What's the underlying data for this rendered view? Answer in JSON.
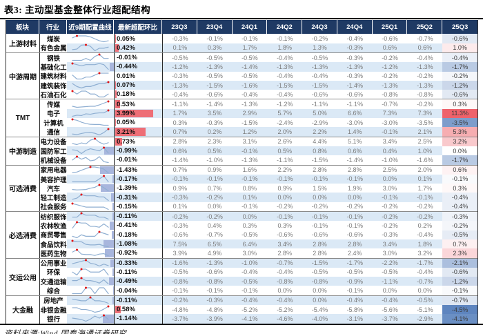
{
  "title": "表3:  主动型基金整体行业超配结构",
  "source": "资料来源:Wind,国泰海通证券研究",
  "colors": {
    "header_bg": "#1f3a64",
    "stripe": "#dbe9f6",
    "bar_positive": "#ee6e76",
    "bar_negative": "#a8b6dd",
    "heat_positive": "#ee626b",
    "heat_negative": "#5b83be",
    "spark_line": "#8fafd2",
    "spark_dot": "#e31212"
  },
  "chart_data": {
    "type": "table",
    "title": "表3:  主动型基金整体行业超配结构",
    "columns": {
      "sector": "板块",
      "industry": "行业",
      "sparkline": "近9期配置曲线",
      "latest": "最新超配环比",
      "quarters": [
        "23Q3",
        "23Q4",
        "24Q1",
        "24Q2",
        "24Q3",
        "24Q4",
        "25Q1",
        "25Q2",
        "25Q3"
      ]
    },
    "value_unit": "%",
    "sections": [
      {
        "name": "上游材料",
        "rows": [
          {
            "industry": "煤炭",
            "latest": 0.05,
            "shade": false,
            "values": [
              -0.3,
              -0.1,
              -0.1,
              -0.1,
              -0.2,
              -0.4,
              -0.6,
              -0.7,
              -0.6
            ]
          },
          {
            "industry": "有色金属",
            "latest": 0.42,
            "shade": true,
            "values": [
              0.1,
              0.3,
              1.7,
              1.8,
              1.3,
              -0.3,
              0.6,
              0.6,
              1.0
            ]
          }
        ]
      },
      {
        "name": "中游周期",
        "rows": [
          {
            "industry": "钢铁",
            "latest": -0.01,
            "shade": false,
            "values": [
              -0.5,
              -0.5,
              -0.5,
              -0.4,
              -0.5,
              -0.3,
              -0.2,
              -0.4,
              -0.4
            ]
          },
          {
            "industry": "基础化工",
            "latest": -0.44,
            "shade": true,
            "values": [
              -1.2,
              -1.3,
              -1.4,
              -1.3,
              -1.3,
              -1.3,
              -1.2,
              -1.3,
              -1.7
            ]
          },
          {
            "industry": "建筑材料",
            "latest": 0.01,
            "shade": false,
            "values": [
              -0.3,
              -0.5,
              -0.5,
              -0.4,
              -0.4,
              -0.3,
              -0.2,
              -0.2,
              -0.2
            ]
          },
          {
            "industry": "建筑装饰",
            "latest": 0.07,
            "shade": true,
            "values": [
              -1.3,
              -1.5,
              -1.6,
              -1.5,
              -1.5,
              -1.4,
              -1.3,
              -1.3,
              -1.2
            ]
          },
          {
            "industry": "石油石化",
            "latest": 0.18,
            "shade": false,
            "values": [
              -0.4,
              -0.6,
              -0.4,
              -0.4,
              -0.6,
              -0.6,
              -0.8,
              -0.8,
              -0.6
            ]
          }
        ]
      },
      {
        "name": "TMT",
        "rows": [
          {
            "industry": "传媒",
            "latest": 0.53,
            "shade": false,
            "values": [
              -1.1,
              -1.4,
              -1.3,
              -1.2,
              -1.1,
              -1.1,
              -0.7,
              -0.2,
              0.3
            ]
          },
          {
            "industry": "电子",
            "latest": 3.99,
            "shade": true,
            "values": [
              1.7,
              3.5,
              2.9,
              5.7,
              5.0,
              6.6,
              7.3,
              7.3,
              11.3
            ]
          },
          {
            "industry": "计算机",
            "latest": 0.05,
            "shade": false,
            "values": [
              0.3,
              -0.3,
              -1.5,
              -2.4,
              -2.9,
              -3.0,
              -3.0,
              -3.5,
              -3.5
            ]
          },
          {
            "industry": "通信",
            "latest": 3.21,
            "shade": true,
            "values": [
              0.7,
              0.2,
              1.2,
              2.0,
              2.2,
              1.4,
              -0.1,
              2.1,
              5.3
            ]
          }
        ]
      },
      {
        "name": "中游制造",
        "rows": [
          {
            "industry": "电力设备",
            "latest": 0.73,
            "shade": false,
            "values": [
              2.8,
              2.3,
              3.1,
              2.6,
              4.4,
              5.1,
              3.4,
              2.5,
              3.2
            ]
          },
          {
            "industry": "国防军工",
            "latest": -0.99,
            "shade": true,
            "values": [
              0.6,
              0.5,
              -0.1,
              0.5,
              0.8,
              0.6,
              0.4,
              1.0,
              0.0
            ]
          },
          {
            "industry": "机械设备",
            "latest": -0.01,
            "shade": false,
            "values": [
              -1.4,
              -1.0,
              -1.3,
              -1.1,
              -1.5,
              -1.4,
              -1.0,
              -1.6,
              -1.7
            ]
          }
        ]
      },
      {
        "name": "可选消费",
        "rows": [
          {
            "industry": "家用电器",
            "latest": -1.43,
            "shade": false,
            "values": [
              0.7,
              0.9,
              1.6,
              2.2,
              2.8,
              2.8,
              2.5,
              2.0,
              0.6
            ]
          },
          {
            "industry": "美容护理",
            "latest": -0.17,
            "shade": true,
            "values": [
              -0.1,
              -0.1,
              -0.1,
              -0.1,
              -0.1,
              -0.1,
              0.0,
              0.1,
              -0.1
            ]
          },
          {
            "industry": "汽车",
            "latest": -1.39,
            "shade": false,
            "values": [
              0.9,
              0.7,
              0.8,
              0.9,
              1.5,
              1.9,
              3.0,
              1.7,
              0.3
            ]
          },
          {
            "industry": "轻工制造",
            "latest": -0.31,
            "shade": true,
            "values": [
              -0.3,
              -0.2,
              0.1,
              0.0,
              0.0,
              0.0,
              -0.1,
              -0.1,
              -0.4
            ]
          },
          {
            "industry": "社会服务",
            "latest": -0.15,
            "shade": false,
            "values": [
              0.1,
              0.0,
              -0.1,
              -0.2,
              -0.2,
              -0.2,
              -0.2,
              -0.2,
              -0.4
            ]
          }
        ]
      },
      {
        "name": "必选消费",
        "rows": [
          {
            "industry": "纺织服饰",
            "latest": -0.11,
            "shade": true,
            "values": [
              -0.2,
              -0.2,
              0.0,
              -0.1,
              -0.1,
              -0.1,
              -0.2,
              -0.2,
              -0.3
            ]
          },
          {
            "industry": "农林牧渔",
            "latest": -0.41,
            "shade": false,
            "values": [
              -0.3,
              0.4,
              0.3,
              0.3,
              -0.1,
              -0.1,
              -0.2,
              0.2,
              -0.2
            ]
          },
          {
            "industry": "商贸零售",
            "latest": -0.18,
            "shade": false,
            "values": [
              -0.6,
              -0.7,
              -0.5,
              -0.6,
              -0.6,
              -0.6,
              -0.3,
              -0.4,
              -0.5
            ]
          },
          {
            "industry": "食品饮料",
            "latest": -1.08,
            "shade": true,
            "values": [
              7.5,
              6.5,
              6.4,
              3.4,
              2.8,
              2.8,
              3.4,
              1.8,
              0.7
            ]
          },
          {
            "industry": "医药生物",
            "latest": -0.92,
            "shade": false,
            "values": [
              3.9,
              4.9,
              3.0,
              2.8,
              2.8,
              2.4,
              3.0,
              3.2,
              2.3
            ]
          }
        ]
      },
      {
        "name": "交运公用",
        "rows": [
          {
            "industry": "公用事业",
            "latest": -0.33,
            "shade": true,
            "values": [
              -1.6,
              -1.3,
              -1.0,
              -0.7,
              -1.5,
              -1.7,
              -2.2,
              -1.7,
              -2.1
            ]
          },
          {
            "industry": "环保",
            "latest": -0.11,
            "shade": false,
            "values": [
              -0.5,
              -0.6,
              -0.4,
              -0.4,
              -0.5,
              -0.5,
              -0.5,
              -0.4,
              -0.6
            ]
          },
          {
            "industry": "交通运输",
            "latest": -0.49,
            "shade": true,
            "values": [
              -0.8,
              -0.8,
              -0.5,
              -0.8,
              -0.8,
              -0.9,
              -1.1,
              -0.7,
              -1.2
            ]
          },
          {
            "industry": "综合",
            "latest": -0.04,
            "shade": false,
            "values": [
              -0.1,
              -0.1,
              -0.1,
              0.0,
              0.0,
              -0.1,
              0.0,
              0.0,
              -0.1
            ]
          }
        ]
      },
      {
        "name": "大金融",
        "rows": [
          {
            "industry": "房地产",
            "latest": -0.11,
            "shade": true,
            "values": [
              -0.2,
              -0.3,
              -0.4,
              -0.4,
              0.0,
              -0.4,
              -0.4,
              -0.5,
              -0.7
            ]
          },
          {
            "industry": "非银金融",
            "latest": 0.58,
            "shade": false,
            "values": [
              -4.8,
              -4.8,
              -5.2,
              -5.2,
              -5.4,
              -5.8,
              -5.6,
              -5.1,
              -4.5
            ]
          },
          {
            "industry": "银行",
            "latest": -1.14,
            "shade": true,
            "values": [
              -3.7,
              -3.9,
              -4.1,
              -4.6,
              -4.0,
              -3.1,
              -3.7,
              -2.9,
              -4.1
            ]
          }
        ]
      }
    ],
    "heat_column": "25Q3",
    "heat_scale": {
      "positive_max": 11.3,
      "negative_max": 4.6
    }
  }
}
